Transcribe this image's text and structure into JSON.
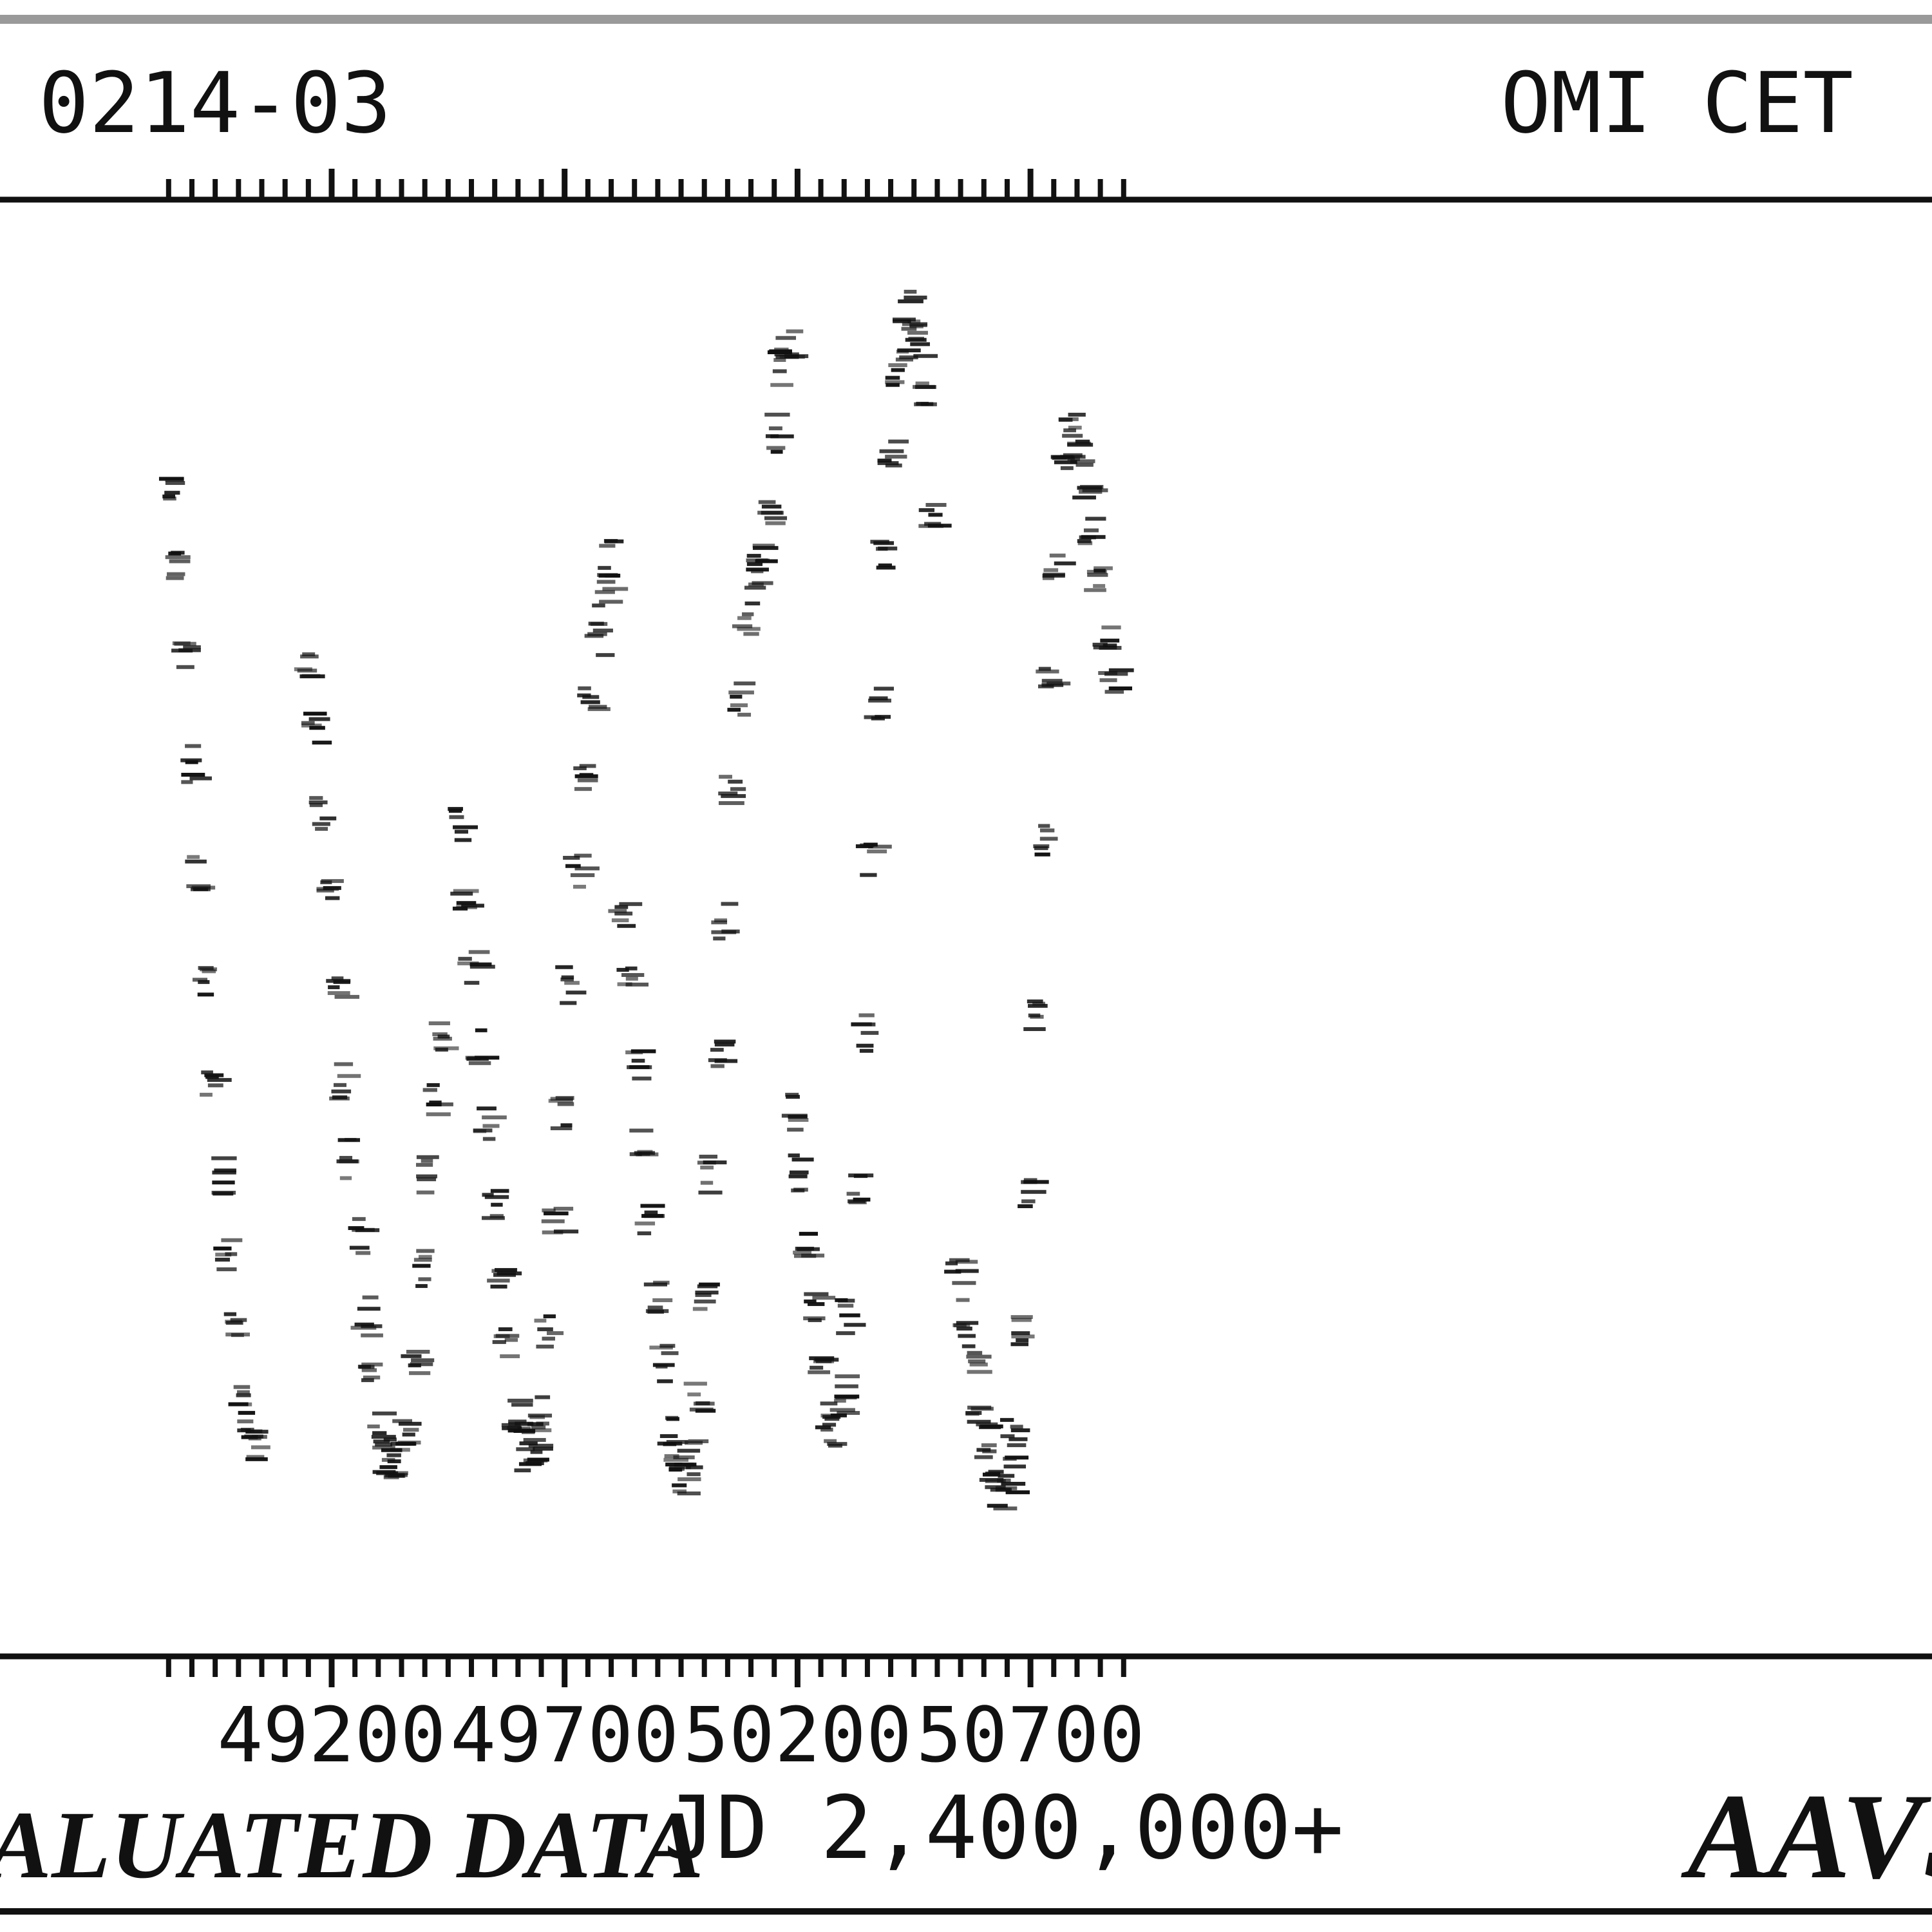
{
  "header": {
    "designation": "0214-03",
    "star_name": "OMI CET"
  },
  "footer": {
    "left_text": "ALUATED DATA",
    "axis_caption": "JD 2,400,000+",
    "right_text": "AAVS"
  },
  "chart_data": {
    "type": "scatter",
    "title": "",
    "xlabel": "JD 2,400,000+",
    "ylabel": "",
    "x_ticks": [
      49200,
      49700,
      50200,
      50700
    ],
    "xlim": [
      48850,
      50900
    ],
    "y_axis_labels_visible": false,
    "grid": false,
    "legend": "none",
    "point_color": "#111111",
    "series": [
      {
        "x": [
          48855,
          48870,
          48885,
          48900,
          48915,
          48930,
          48945,
          48960,
          48975,
          48990,
          49005,
          49020,
          49035,
          49150,
          49165,
          49180,
          49195,
          49210,
          49225,
          49240,
          49255,
          49270,
          49285,
          49300,
          49315,
          49330,
          49345,
          49360,
          49375,
          49390,
          49405,
          49420,
          49435,
          49470,
          49485,
          49500,
          49515,
          49530,
          49545,
          49560,
          49575,
          49590,
          49605,
          49620,
          49635,
          49650,
          49665,
          49680,
          49695,
          49710,
          49725,
          49740,
          49755,
          49770,
          49785,
          49800,
          49820,
          49835,
          49850,
          49865,
          49880,
          49895,
          49910,
          49925,
          49940,
          49955,
          49970,
          49985,
          50000,
          50015,
          50030,
          50045,
          50060,
          50075,
          50090,
          50105,
          50120,
          50135,
          50150,
          50165,
          50180,
          50190,
          50205,
          50220,
          50235,
          50250,
          50265,
          50280,
          50295,
          50310,
          50325,
          50340,
          50355,
          50370,
          50385,
          50400,
          50415,
          50430,
          50445,
          50460,
          50475,
          50490,
          50545,
          50560,
          50575,
          50590,
          50605,
          50620,
          50635,
          50650,
          50665,
          50680,
          50695,
          50710,
          50725,
          50740,
          50755,
          50770,
          50785,
          50800,
          50815,
          50830,
          50845,
          50860,
          50875
        ],
        "y": [
          3.5,
          3.9,
          4.5,
          5.2,
          5.9,
          6.6,
          7.2,
          7.8,
          8.3,
          8.8,
          9.2,
          9.4,
          9.5,
          4.6,
          5.0,
          5.5,
          6.0,
          6.6,
          7.2,
          7.7,
          8.2,
          8.7,
          9.1,
          9.4,
          9.6,
          9.7,
          9.6,
          9.4,
          9.0,
          8.4,
          7.8,
          7.3,
          6.9,
          5.6,
          6.0,
          6.5,
          7.0,
          7.5,
          8.0,
          8.5,
          8.9,
          9.3,
          9.5,
          9.6,
          9.5,
          9.3,
          8.8,
          8.1,
          7.4,
          6.6,
          5.9,
          5.3,
          4.8,
          4.4,
          4.1,
          3.9,
          6.2,
          6.6,
          7.1,
          7.6,
          8.1,
          8.6,
          9.0,
          9.4,
          9.6,
          9.7,
          9.6,
          9.2,
          8.6,
          7.8,
          7.0,
          6.2,
          5.4,
          4.8,
          4.3,
          4.0,
          3.9,
          3.6,
          3.1,
          2.7,
          2.5,
          7.4,
          7.8,
          8.2,
          8.6,
          9.0,
          9.3,
          9.4,
          9.2,
          8.7,
          7.9,
          6.9,
          5.8,
          4.8,
          3.9,
          3.2,
          2.7,
          2.5,
          2.3,
          2.5,
          2.9,
          3.6,
          8.4,
          8.7,
          9.0,
          9.3,
          9.5,
          9.7,
          9.8,
          9.7,
          9.4,
          8.8,
          7.9,
          6.8,
          5.7,
          4.7,
          3.9,
          3.3,
          3.1,
          3.2,
          3.4,
          3.7,
          4.0,
          4.4,
          4.7
        ]
      }
    ]
  }
}
